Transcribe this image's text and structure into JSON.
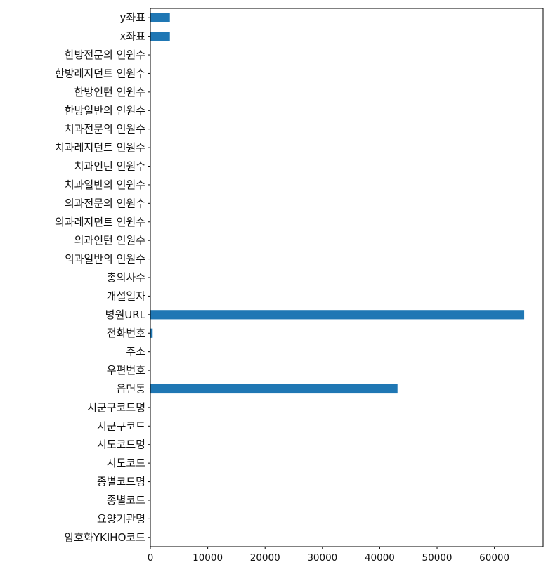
{
  "chart_data": {
    "type": "bar",
    "orientation": "horizontal",
    "bar_color": "#1f77b4",
    "grid": false,
    "title": "",
    "xlabel": "",
    "ylabel": "",
    "xlim": [
      0,
      68500
    ],
    "xticks": [
      0,
      10000,
      20000,
      30000,
      40000,
      50000,
      60000
    ],
    "categories": [
      "암호화YKIHO코드",
      "요양기관명",
      "종별코드",
      "종별코드명",
      "시도코드",
      "시도코드명",
      "시군구코드",
      "시군구코드명",
      "읍면동",
      "우편번호",
      "주소",
      "전화번호",
      "병원URL",
      "개설일자",
      "총의사수",
      "의과일반의 인원수",
      "의과인턴 인원수",
      "의과레지던트 인원수",
      "의과전문의 인원수",
      "치과일반의 인원수",
      "치과인턴 인원수",
      "치과레지던트 인원수",
      "치과전문의 인원수",
      "한방일반의 인원수",
      "한방인턴 인원수",
      "한방레지던트 인원수",
      "한방전문의 인원수",
      "x좌표",
      "y좌표"
    ],
    "values": [
      0,
      0,
      0,
      0,
      0,
      0,
      0,
      0,
      43100,
      0,
      0,
      400,
      65200,
      0,
      0,
      0,
      0,
      0,
      0,
      0,
      0,
      0,
      0,
      0,
      0,
      0,
      0,
      3400,
      3400
    ]
  }
}
